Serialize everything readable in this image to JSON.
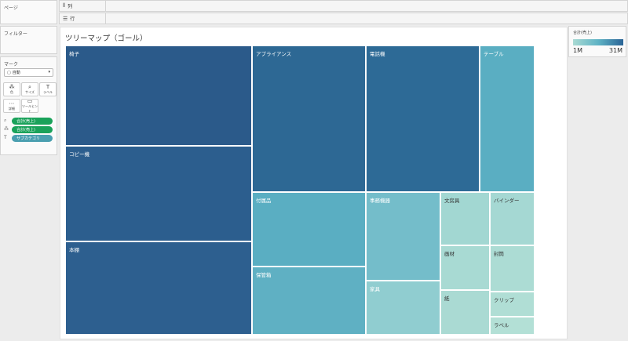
{
  "panels": {
    "pages": "ページ",
    "filters": "フィルター",
    "marks": "マーク"
  },
  "shelves": {
    "columns": "列",
    "rows": "行"
  },
  "marks": {
    "type": "自動",
    "buttons": {
      "color": "色",
      "size": "サイズ",
      "label": "ラベル",
      "detail": "詳細",
      "tooltip": "ツールヒント"
    },
    "pills": [
      {
        "label": "合計(売上)",
        "color": "#1aa25a"
      },
      {
        "label": "合計(売上)",
        "color": "#1aa25a"
      },
      {
        "label": "サブカテゴリ",
        "color": "#4a9fb0"
      }
    ]
  },
  "sheet": {
    "title": "ツリーマップ（ゴール）"
  },
  "legend": {
    "title": "合計(売上)",
    "min": "1M",
    "max": "31M",
    "colors": [
      "#a9dad3",
      "#5fb3c5",
      "#2a6496"
    ]
  },
  "chart_data": {
    "type": "treemap",
    "title": "ツリーマップ（ゴール）",
    "color_measure": "合計(売上)",
    "color_range": [
      "1M",
      "31M"
    ],
    "cells": [
      {
        "label": "椅子",
        "color": "#2b5a8a"
      },
      {
        "label": "コピー機",
        "color": "#2c5e8e"
      },
      {
        "label": "本棚",
        "color": "#2d5f8f"
      },
      {
        "label": "アプライアンス",
        "color": "#2d6894"
      },
      {
        "label": "電話機",
        "color": "#2d6a96"
      },
      {
        "label": "テーブル",
        "color": "#5aaec2"
      },
      {
        "label": "付属品",
        "color": "#5aaec2"
      },
      {
        "label": "保管箱",
        "color": "#5fb0c3"
      },
      {
        "label": "事務機器",
        "color": "#74bdca"
      },
      {
        "label": "家具",
        "color": "#90cdd0"
      },
      {
        "label": "文房具",
        "color": "#a2d7d2"
      },
      {
        "label": "バインダー",
        "color": "#a5d8d3"
      },
      {
        "label": "画材",
        "color": "#a8dad3"
      },
      {
        "label": "封筒",
        "color": "#acdcd4"
      },
      {
        "label": "紙",
        "color": "#aadad3"
      },
      {
        "label": "クリップ",
        "color": "#b0ded5"
      },
      {
        "label": "ラベル",
        "color": "#b3e0d6"
      }
    ]
  }
}
